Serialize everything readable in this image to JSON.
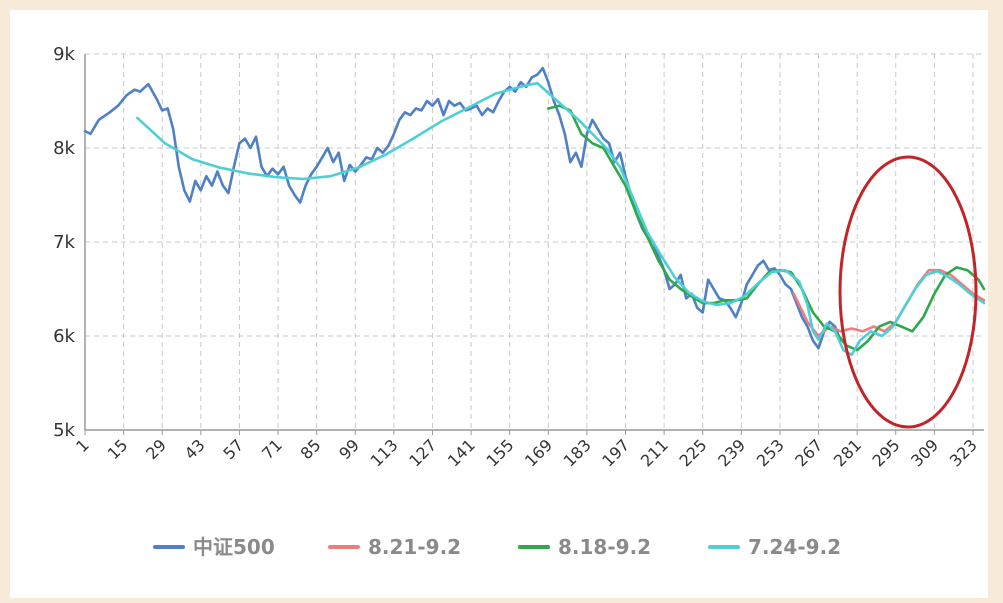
{
  "chart_data": {
    "type": "line",
    "title": "",
    "xlabel": "",
    "ylabel": "",
    "xlim": [
      1,
      327
    ],
    "ylim": [
      5000,
      9000
    ],
    "x_ticks": [
      1,
      15,
      29,
      43,
      57,
      71,
      85,
      99,
      113,
      127,
      141,
      155,
      169,
      183,
      197,
      211,
      225,
      239,
      253,
      267,
      281,
      295,
      309,
      323
    ],
    "y_ticks": [
      {
        "value": 5000,
        "label": "5k"
      },
      {
        "value": 6000,
        "label": "6k"
      },
      {
        "value": 7000,
        "label": "7k"
      },
      {
        "value": 8000,
        "label": "8k"
      },
      {
        "value": 9000,
        "label": "9k"
      }
    ],
    "grid": true,
    "legend_position": "bottom",
    "series": [
      {
        "name": "中证500",
        "color": "#4f7fc6",
        "points": [
          [
            1,
            8180
          ],
          [
            3,
            8150
          ],
          [
            6,
            8300
          ],
          [
            10,
            8380
          ],
          [
            13,
            8450
          ],
          [
            16,
            8560
          ],
          [
            19,
            8620
          ],
          [
            21,
            8600
          ],
          [
            24,
            8680
          ],
          [
            27,
            8520
          ],
          [
            29,
            8400
          ],
          [
            31,
            8420
          ],
          [
            33,
            8200
          ],
          [
            35,
            7800
          ],
          [
            37,
            7550
          ],
          [
            39,
            7430
          ],
          [
            41,
            7650
          ],
          [
            43,
            7550
          ],
          [
            45,
            7700
          ],
          [
            47,
            7600
          ],
          [
            49,
            7750
          ],
          [
            51,
            7600
          ],
          [
            53,
            7520
          ],
          [
            55,
            7800
          ],
          [
            57,
            8050
          ],
          [
            59,
            8100
          ],
          [
            61,
            8000
          ],
          [
            63,
            8120
          ],
          [
            65,
            7800
          ],
          [
            67,
            7700
          ],
          [
            69,
            7780
          ],
          [
            71,
            7720
          ],
          [
            73,
            7800
          ],
          [
            75,
            7600
          ],
          [
            77,
            7500
          ],
          [
            79,
            7420
          ],
          [
            81,
            7600
          ],
          [
            83,
            7720
          ],
          [
            85,
            7800
          ],
          [
            87,
            7900
          ],
          [
            89,
            8000
          ],
          [
            91,
            7850
          ],
          [
            93,
            7950
          ],
          [
            95,
            7650
          ],
          [
            97,
            7820
          ],
          [
            99,
            7750
          ],
          [
            101,
            7820
          ],
          [
            103,
            7900
          ],
          [
            105,
            7880
          ],
          [
            107,
            8000
          ],
          [
            109,
            7950
          ],
          [
            111,
            8020
          ],
          [
            113,
            8150
          ],
          [
            115,
            8300
          ],
          [
            117,
            8380
          ],
          [
            119,
            8350
          ],
          [
            121,
            8420
          ],
          [
            123,
            8400
          ],
          [
            125,
            8500
          ],
          [
            127,
            8450
          ],
          [
            129,
            8520
          ],
          [
            131,
            8350
          ],
          [
            133,
            8500
          ],
          [
            135,
            8450
          ],
          [
            137,
            8480
          ],
          [
            139,
            8400
          ],
          [
            141,
            8420
          ],
          [
            143,
            8450
          ],
          [
            145,
            8350
          ],
          [
            147,
            8420
          ],
          [
            149,
            8380
          ],
          [
            151,
            8500
          ],
          [
            153,
            8600
          ],
          [
            155,
            8650
          ],
          [
            157,
            8600
          ],
          [
            159,
            8700
          ],
          [
            161,
            8650
          ],
          [
            163,
            8750
          ],
          [
            165,
            8780
          ],
          [
            167,
            8850
          ],
          [
            169,
            8700
          ],
          [
            171,
            8500
          ],
          [
            173,
            8350
          ],
          [
            175,
            8150
          ],
          [
            177,
            7850
          ],
          [
            179,
            7950
          ],
          [
            181,
            7800
          ],
          [
            183,
            8150
          ],
          [
            185,
            8300
          ],
          [
            187,
            8200
          ],
          [
            189,
            8100
          ],
          [
            191,
            8050
          ],
          [
            193,
            7850
          ],
          [
            195,
            7950
          ],
          [
            197,
            7700
          ],
          [
            199,
            7500
          ],
          [
            201,
            7300
          ],
          [
            203,
            7150
          ],
          [
            205,
            7050
          ],
          [
            207,
            7000
          ],
          [
            209,
            6850
          ],
          [
            211,
            6700
          ],
          [
            213,
            6500
          ],
          [
            215,
            6550
          ],
          [
            217,
            6650
          ],
          [
            219,
            6400
          ],
          [
            221,
            6450
          ],
          [
            223,
            6300
          ],
          [
            225,
            6250
          ],
          [
            227,
            6600
          ],
          [
            229,
            6500
          ],
          [
            231,
            6400
          ],
          [
            233,
            6380
          ],
          [
            235,
            6300
          ],
          [
            237,
            6200
          ],
          [
            239,
            6350
          ],
          [
            241,
            6550
          ],
          [
            243,
            6650
          ],
          [
            245,
            6750
          ],
          [
            247,
            6800
          ],
          [
            249,
            6700
          ],
          [
            251,
            6720
          ],
          [
            253,
            6650
          ],
          [
            255,
            6550
          ],
          [
            257,
            6500
          ],
          [
            259,
            6350
          ],
          [
            261,
            6200
          ],
          [
            263,
            6100
          ],
          [
            265,
            5950
          ],
          [
            267,
            5870
          ],
          [
            269,
            6050
          ],
          [
            271,
            6150
          ],
          [
            273,
            6100
          ],
          [
            275,
            5950
          ]
        ]
      },
      {
        "name": "8.21-9.2",
        "color": "#f07b7b",
        "points": [
          [
            258,
            6450
          ],
          [
            263,
            6150
          ],
          [
            267,
            6000
          ],
          [
            271,
            6100
          ],
          [
            275,
            6050
          ],
          [
            279,
            6080
          ],
          [
            283,
            6050
          ],
          [
            287,
            6100
          ],
          [
            291,
            6050
          ],
          [
            295,
            6150
          ],
          [
            299,
            6350
          ],
          [
            303,
            6550
          ],
          [
            307,
            6700
          ],
          [
            311,
            6700
          ],
          [
            315,
            6650
          ],
          [
            319,
            6550
          ],
          [
            323,
            6450
          ],
          [
            327,
            6380
          ]
        ]
      },
      {
        "name": "8.18-9.2",
        "color": "#2ea84a",
        "points": [
          [
            169,
            8420
          ],
          [
            173,
            8450
          ],
          [
            177,
            8400
          ],
          [
            181,
            8150
          ],
          [
            185,
            8050
          ],
          [
            189,
            8000
          ],
          [
            193,
            7800
          ],
          [
            197,
            7600
          ],
          [
            201,
            7300
          ],
          [
            205,
            7050
          ],
          [
            209,
            6800
          ],
          [
            213,
            6600
          ],
          [
            217,
            6500
          ],
          [
            221,
            6420
          ],
          [
            225,
            6350
          ],
          [
            229,
            6350
          ],
          [
            233,
            6380
          ],
          [
            237,
            6380
          ],
          [
            241,
            6400
          ],
          [
            245,
            6550
          ],
          [
            249,
            6680
          ],
          [
            253,
            6700
          ],
          [
            257,
            6680
          ],
          [
            261,
            6500
          ],
          [
            265,
            6250
          ],
          [
            269,
            6100
          ],
          [
            273,
            6050
          ],
          [
            277,
            5900
          ],
          [
            281,
            5850
          ],
          [
            285,
            5950
          ],
          [
            289,
            6100
          ],
          [
            293,
            6150
          ],
          [
            297,
            6100
          ],
          [
            301,
            6050
          ],
          [
            305,
            6200
          ],
          [
            309,
            6450
          ],
          [
            313,
            6650
          ],
          [
            317,
            6730
          ],
          [
            321,
            6700
          ],
          [
            325,
            6600
          ],
          [
            327,
            6500
          ]
        ]
      },
      {
        "name": "7.24-9.2",
        "color": "#4ecfd6",
        "points": [
          [
            20,
            8320
          ],
          [
            30,
            8050
          ],
          [
            40,
            7880
          ],
          [
            50,
            7790
          ],
          [
            60,
            7730
          ],
          [
            70,
            7690
          ],
          [
            80,
            7670
          ],
          [
            90,
            7700
          ],
          [
            100,
            7790
          ],
          [
            110,
            7930
          ],
          [
            120,
            8100
          ],
          [
            130,
            8280
          ],
          [
            140,
            8430
          ],
          [
            150,
            8580
          ],
          [
            160,
            8660
          ],
          [
            165,
            8690
          ],
          [
            170,
            8560
          ],
          [
            180,
            8300
          ],
          [
            190,
            8000
          ],
          [
            195,
            7800
          ],
          [
            200,
            7450
          ],
          [
            205,
            7100
          ],
          [
            210,
            6850
          ],
          [
            215,
            6620
          ],
          [
            220,
            6460
          ],
          [
            225,
            6370
          ],
          [
            230,
            6330
          ],
          [
            235,
            6350
          ],
          [
            240,
            6420
          ],
          [
            245,
            6560
          ],
          [
            250,
            6680
          ],
          [
            255,
            6700
          ],
          [
            260,
            6580
          ],
          [
            263,
            6330
          ],
          [
            265,
            6050
          ],
          [
            267,
            5960
          ],
          [
            270,
            6130
          ],
          [
            273,
            6050
          ],
          [
            276,
            5850
          ],
          [
            279,
            5800
          ],
          [
            282,
            5950
          ],
          [
            286,
            6050
          ],
          [
            290,
            6000
          ],
          [
            294,
            6100
          ],
          [
            298,
            6300
          ],
          [
            302,
            6500
          ],
          [
            306,
            6650
          ],
          [
            310,
            6690
          ],
          [
            314,
            6630
          ],
          [
            318,
            6550
          ],
          [
            322,
            6450
          ],
          [
            327,
            6350
          ]
        ]
      }
    ]
  }
}
